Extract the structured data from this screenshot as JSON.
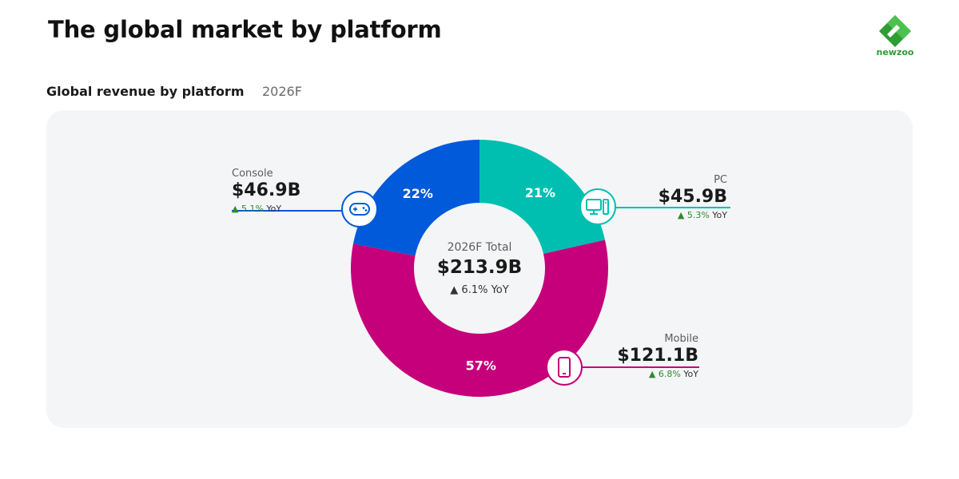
{
  "title": "The global market by platform",
  "brand": {
    "name": "newzoo",
    "color": "#2e9d34"
  },
  "subtitle": "Global revenue by platform",
  "year": "2026F",
  "center": {
    "label": "2026F Total",
    "total": "$213.9B",
    "yoy_value": "6.1%",
    "yoy_suffix": "YoY"
  },
  "segments": [
    {
      "name": "Console",
      "value": "$46.9B",
      "yoy": "5.1%",
      "yoy_suffix": "YoY",
      "share_label": "22%",
      "color": "#005ad9",
      "icon": "gamepad-icon"
    },
    {
      "name": "PC",
      "value": "$45.9B",
      "yoy": "5.3%",
      "yoy_suffix": "YoY",
      "share_label": "21%",
      "color": "#00bfb1",
      "icon": "desktop-computer-icon"
    },
    {
      "name": "Mobile",
      "value": "$121.1B",
      "yoy": "6.8%",
      "yoy_suffix": "YoY",
      "share_label": "57%",
      "color": "#c5007a",
      "icon": "smartphone-icon"
    }
  ],
  "chart_data": {
    "type": "pie",
    "title": "Global revenue by platform",
    "categories": [
      "PC",
      "Mobile",
      "Console"
    ],
    "values": [
      45.9,
      121.1,
      46.9
    ],
    "shares": [
      21,
      57,
      22
    ],
    "total": 213.9,
    "yoy_growth_pct": [
      5.3,
      6.8,
      5.1
    ],
    "total_yoy_growth_pct": 6.1,
    "colors": [
      "#00bfb1",
      "#c5007a",
      "#005ad9"
    ],
    "donut": true
  }
}
